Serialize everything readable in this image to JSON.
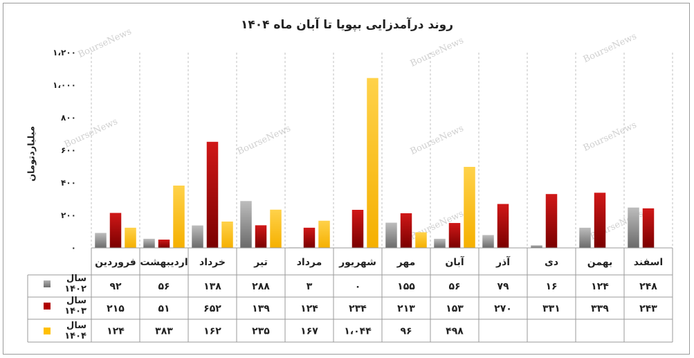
{
  "chart_data": {
    "type": "bar",
    "title": "روند درآمدزایی بپویا تا آبان ماه ۱۴۰۴",
    "ylabel": "میلیاردتومان",
    "ylim": [
      0,
      1200
    ],
    "y_ticks": [
      "۰",
      "۲۰۰",
      "۴۰۰",
      "۶۰۰",
      "۸۰۰",
      "۱،۰۰۰",
      "۱،۲۰۰"
    ],
    "categories": [
      "فروردین",
      "اردیبهشت",
      "خرداد",
      "تیر",
      "مرداد",
      "شهریور",
      "مهر",
      "آبان",
      "آذر",
      "دی",
      "بهمن",
      "اسفند"
    ],
    "series": [
      {
        "name": "سال ۱۴۰۲",
        "color": "#8c8c8c",
        "values": [
          92,
          56,
          138,
          288,
          3,
          0,
          155,
          56,
          79,
          16,
          124,
          248
        ],
        "labels": [
          "۹۲",
          "۵۶",
          "۱۳۸",
          "۲۸۸",
          "۳",
          "۰",
          "۱۵۵",
          "۵۶",
          "۷۹",
          "۱۶",
          "۱۲۴",
          "۲۴۸"
        ]
      },
      {
        "name": "سال ۱۴۰۳",
        "color": "#b00000",
        "values": [
          215,
          51,
          652,
          139,
          124,
          234,
          213,
          153,
          270,
          331,
          339,
          243
        ],
        "labels": [
          "۲۱۵",
          "۵۱",
          "۶۵۲",
          "۱۳۹",
          "۱۲۴",
          "۲۳۴",
          "۲۱۳",
          "۱۵۳",
          "۲۷۰",
          "۳۳۱",
          "۳۳۹",
          "۲۴۳"
        ]
      },
      {
        "name": "سال ۱۴۰۴",
        "color": "#ffc000",
        "values": [
          124,
          383,
          162,
          235,
          167,
          1044,
          96,
          498,
          null,
          null,
          null,
          null
        ],
        "labels": [
          "۱۲۴",
          "۳۸۳",
          "۱۶۲",
          "۲۳۵",
          "۱۶۷",
          "۱،۰۴۴",
          "۹۶",
          "۴۹۸",
          "",
          "",
          "",
          ""
        ]
      }
    ],
    "legend": "table-rows",
    "grid": "vertical-dashed",
    "watermark": "BourseNews"
  }
}
